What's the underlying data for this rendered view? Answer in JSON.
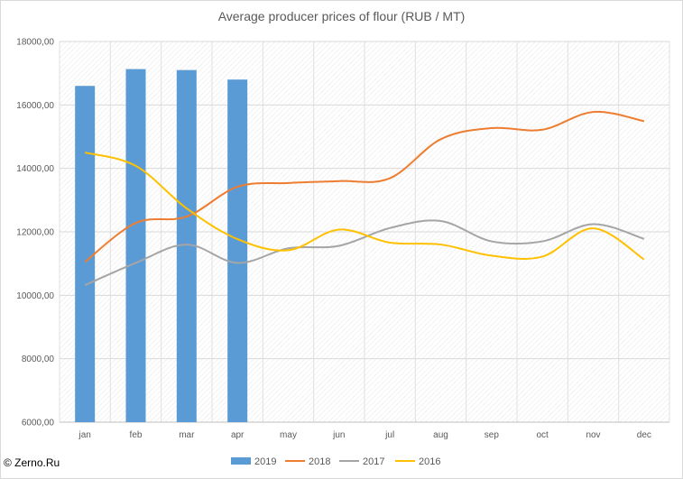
{
  "chart_data": {
    "type": "bar",
    "title": "Average producer prices of flour (RUB / MT)",
    "categories": [
      "jan",
      "feb",
      "mar",
      "apr",
      "may",
      "jun",
      "jul",
      "aug",
      "sep",
      "oct",
      "nov",
      "dec"
    ],
    "ylim": [
      6000,
      18000
    ],
    "yticks": [
      6000,
      8000,
      10000,
      12000,
      14000,
      16000,
      18000
    ],
    "ytick_labels": [
      "6000,00",
      "8000,00",
      "10000,00",
      "12000,00",
      "14000,00",
      "16000,00",
      "18000,00"
    ],
    "grid": true,
    "legend": "bottom",
    "series": [
      {
        "name": "2019",
        "kind": "bar",
        "color": "#5b9bd5",
        "values": [
          16600,
          17130,
          17100,
          16800,
          null,
          null,
          null,
          null,
          null,
          null,
          null,
          null
        ]
      },
      {
        "name": "2018",
        "kind": "line",
        "color": "#ed7d31",
        "values": [
          11050,
          12280,
          12480,
          13420,
          13540,
          13600,
          13690,
          14920,
          15270,
          15220,
          15780,
          15490
        ]
      },
      {
        "name": "2017",
        "kind": "line",
        "color": "#a5a5a5",
        "values": [
          10320,
          11020,
          11600,
          11020,
          11480,
          11560,
          12120,
          12340,
          11700,
          11700,
          12240,
          11780
        ]
      },
      {
        "name": "2016",
        "kind": "line",
        "color": "#ffc000",
        "values": [
          14500,
          14080,
          12740,
          11770,
          11420,
          12070,
          11660,
          11600,
          11250,
          11220,
          12110,
          11130
        ]
      }
    ]
  },
  "copyright": "© Zerno.Ru"
}
